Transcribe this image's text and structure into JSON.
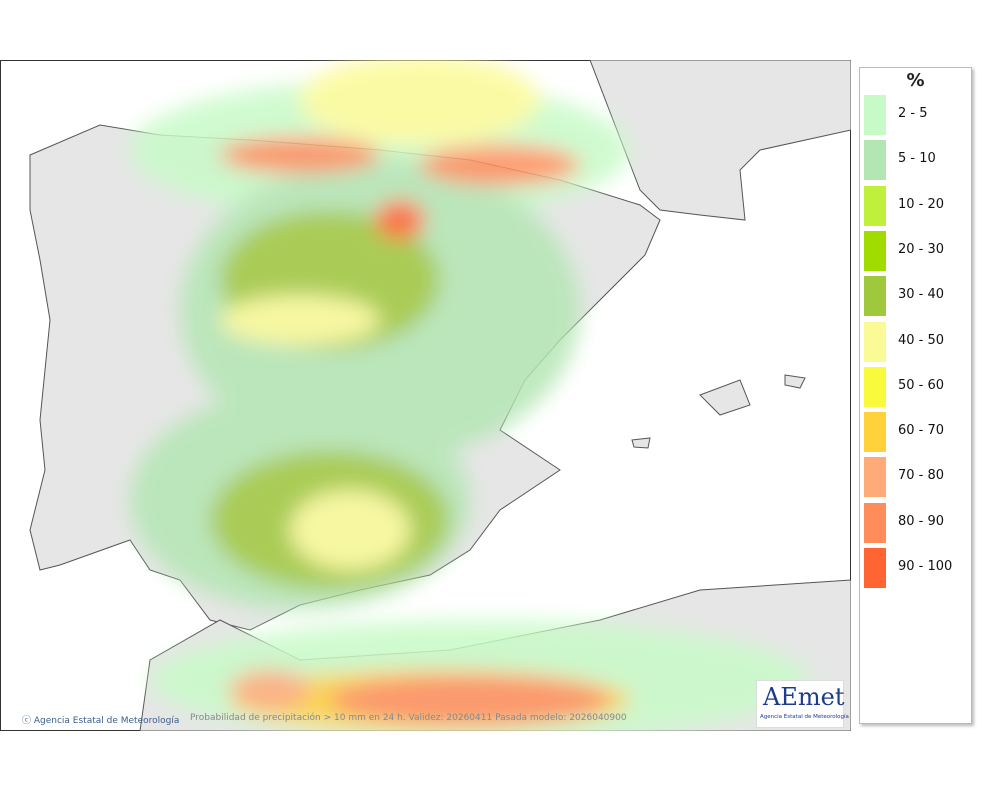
{
  "legend": {
    "title": "%",
    "items": [
      {
        "label": "2 - 5",
        "color": "#c8fac8"
      },
      {
        "label": "5 - 10",
        "color": "#b4e6b4"
      },
      {
        "label": "10 - 20",
        "color": "#bef03c"
      },
      {
        "label": "20 - 30",
        "color": "#a0dc00"
      },
      {
        "label": "30 - 40",
        "color": "#a0c83c"
      },
      {
        "label": "40 - 50",
        "color": "#fafa96"
      },
      {
        "label": "50 - 60",
        "color": "#fafa3c"
      },
      {
        "label": "60 - 70",
        "color": "#ffd23c"
      },
      {
        "label": "70 - 80",
        "color": "#ffaa78"
      },
      {
        "label": "80 - 90",
        "color": "#ff8c5a"
      },
      {
        "label": "90 - 100",
        "color": "#ff6432"
      }
    ]
  },
  "footer": {
    "credit": "Agencia Estatal de Meteorología",
    "caption": "Probabilidad de precipitación > 10 mm en 24 h. Validez: 20260411 Pasada modelo: 2026040900"
  },
  "logo": {
    "name": "AEmet",
    "subtitle": "Agencia Estatal de Meteorología"
  }
}
